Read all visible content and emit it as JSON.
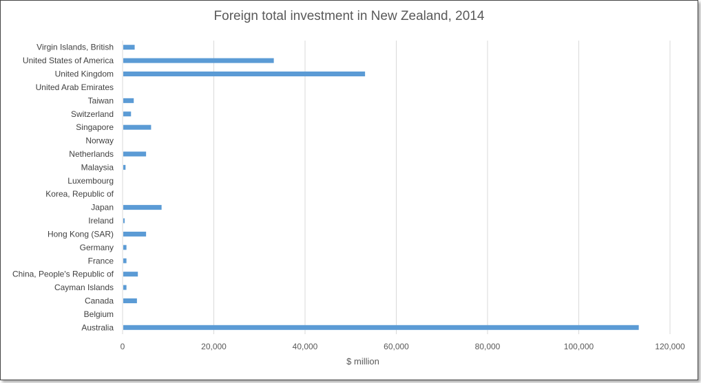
{
  "chart_data": {
    "type": "bar",
    "orientation": "horizontal",
    "title": "Foreign total investment in New Zealand, 2014",
    "xlabel": "$ million",
    "ylabel": "",
    "xlim": [
      0,
      120000
    ],
    "x_ticks": [
      "0",
      "20,000",
      "40,000",
      "60,000",
      "80,000",
      "100,000",
      "120,000"
    ],
    "grid": "vertical",
    "bar_color": "#5b9bd5",
    "categories": [
      "Virgin Islands, British",
      "United States of America",
      "United Kingdom",
      "United Arab Emirates",
      "Taiwan",
      "Switzerland",
      "Singapore",
      "Norway",
      "Netherlands",
      "Malaysia",
      "Luxembourg",
      "Korea, Republic of",
      "Japan",
      "Ireland",
      "Hong Kong (SAR)",
      "Germany",
      "France",
      "China, People's Republic of",
      "Cayman Islands",
      "Canada",
      "Belgium",
      "Australia"
    ],
    "values": [
      2500,
      33000,
      53000,
      0,
      2300,
      1700,
      6100,
      0,
      5000,
      500,
      0,
      0,
      8400,
      300,
      5000,
      700,
      700,
      3200,
      700,
      3000,
      0,
      113000
    ]
  }
}
